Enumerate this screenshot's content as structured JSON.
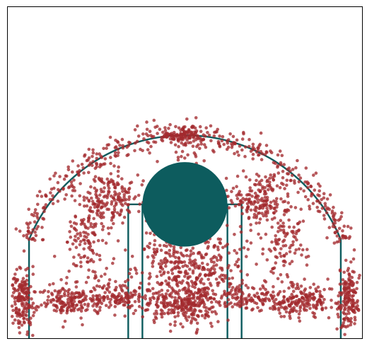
{
  "chart_data": {
    "type": "scatter",
    "title": "",
    "xlabel": "",
    "ylabel": "",
    "xlim": [
      -250,
      250
    ],
    "ylim": [
      -47.5,
      422.5
    ],
    "grid": false,
    "legend": "none",
    "colors": {
      "shots": "#a32a2e",
      "court": "#0d5c5e",
      "frame": "#000000",
      "background": "#ffffff"
    },
    "court": {
      "hoop_center": [
        0,
        0
      ],
      "three_point_radius": 237.5,
      "corner_three_x": 220,
      "corner_three_top_y": 92.5,
      "lane_outer_half_width": 80,
      "lane_inner_half_width": 60,
      "free_throw_y": 142.5,
      "center_circle_radius": 60,
      "top_arc_extent": 190
    },
    "series": [
      {
        "clusters": [
          {
            "label": "left-corner",
            "x": -230,
            "y": 5,
            "sx": 7,
            "sy": 24,
            "n": 170
          },
          {
            "label": "right-corner",
            "x": 230,
            "y": 5,
            "sx": 7,
            "sy": 24,
            "n": 170
          },
          {
            "label": "paint",
            "x": 0,
            "y": 45,
            "sx": 42,
            "sy": 38,
            "n": 520
          },
          {
            "label": "rim",
            "x": 0,
            "y": 0,
            "sx": 25,
            "sy": 12,
            "n": 200
          },
          {
            "label": "left-baseline-mid",
            "x": -160,
            "y": 5,
            "sx": 26,
            "sy": 11,
            "n": 200
          },
          {
            "label": "right-baseline-mid",
            "x": 160,
            "y": 5,
            "sx": 26,
            "sy": 11,
            "n": 200
          },
          {
            "label": "left-block",
            "x": -90,
            "y": 10,
            "sx": 18,
            "sy": 9,
            "n": 90
          },
          {
            "label": "right-block",
            "x": 90,
            "y": 10,
            "sx": 18,
            "sy": 9,
            "n": 90
          },
          {
            "label": "left-elbow",
            "x": -105,
            "y": 150,
            "sx": 20,
            "sy": 18,
            "n": 180
          },
          {
            "label": "right-elbow",
            "x": 105,
            "y": 150,
            "sx": 20,
            "sy": 18,
            "n": 180
          },
          {
            "label": "left-mid-wing",
            "x": -140,
            "y": 85,
            "sx": 16,
            "sy": 32,
            "n": 120
          },
          {
            "label": "right-mid-wing",
            "x": 140,
            "y": 85,
            "sx": 16,
            "sy": 32,
            "n": 120
          },
          {
            "label": "free-throw-top",
            "x": 0,
            "y": 195,
            "sx": 14,
            "sy": 20,
            "n": 45
          }
        ],
        "three_point_arc": {
          "radius": 242,
          "radius_spread": 9,
          "n": 430
        },
        "top_of_key": {
          "x": 0,
          "y": 240,
          "sx": 16,
          "sy": 5,
          "n": 85
        }
      }
    ]
  }
}
